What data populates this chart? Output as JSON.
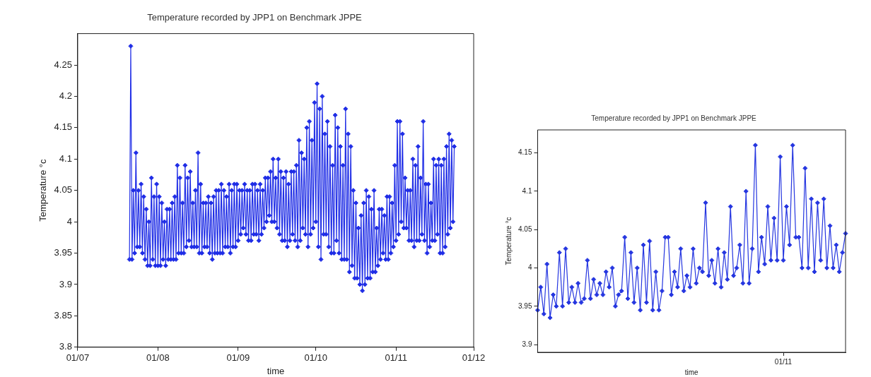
{
  "chart_data": [
    {
      "type": "line",
      "title": "Temperature recorded by JPP1 on Benchmark JPPE",
      "xlabel": "time",
      "ylabel": "Temperature °c",
      "marker": "diamond",
      "xlim": [
        "--07-01",
        "--12-01"
      ],
      "xticks": [
        {
          "value": "--07-01",
          "label": "01/07"
        },
        {
          "value": "--08-01",
          "label": "01/08"
        },
        {
          "value": "--09-01",
          "label": "01/09"
        },
        {
          "value": "--10-01",
          "label": "01/10"
        },
        {
          "value": "--11-01",
          "label": "01/11"
        },
        {
          "value": "--12-01",
          "label": "01/12"
        }
      ],
      "ylim": [
        3.8,
        4.3
      ],
      "yticks": [
        3.8,
        3.85,
        3.9,
        3.95,
        4,
        4.05,
        4.1,
        4.15,
        4.2,
        4.25
      ],
      "x": [
        "--07-21",
        "--07-21T12:00",
        "--07-22",
        "--07-22T12:00",
        "--07-23",
        "--07-23T12:00",
        "--07-24",
        "--07-24T12:00",
        "--07-25",
        "--07-25T12:00",
        "--07-26",
        "--07-26T12:00",
        "--07-27",
        "--07-27T12:00",
        "--07-28",
        "--07-28T12:00",
        "--07-29",
        "--07-29T12:00",
        "--07-30",
        "--07-30T12:00",
        "--07-31",
        "--07-31T12:00",
        "--08-01",
        "--08-01T12:00",
        "--08-02",
        "--08-02T12:00",
        "--08-03",
        "--08-03T12:00",
        "--08-04",
        "--08-04T12:00",
        "--08-05",
        "--08-05T12:00",
        "--08-06",
        "--08-06T12:00",
        "--08-07",
        "--08-07T12:00",
        "--08-08",
        "--08-08T12:00",
        "--08-09",
        "--08-09T12:00",
        "--08-10",
        "--08-10T12:00",
        "--08-11",
        "--08-11T12:00",
        "--08-12",
        "--08-12T12:00",
        "--08-13",
        "--08-13T12:00",
        "--08-14",
        "--08-14T12:00",
        "--08-15",
        "--08-15T12:00",
        "--08-16",
        "--08-16T12:00",
        "--08-17",
        "--08-17T12:00",
        "--08-18",
        "--08-18T12:00",
        "--08-19",
        "--08-19T12:00",
        "--08-20",
        "--08-20T12:00",
        "--08-21",
        "--08-21T12:00",
        "--08-22",
        "--08-22T12:00",
        "--08-23",
        "--08-23T12:00",
        "--08-24",
        "--08-24T12:00",
        "--08-25",
        "--08-25T12:00",
        "--08-26",
        "--08-26T12:00",
        "--08-27",
        "--08-27T12:00",
        "--08-28",
        "--08-28T12:00",
        "--08-29",
        "--08-29T12:00",
        "--08-30",
        "--08-30T12:00",
        "--08-31",
        "--08-31T12:00",
        "--09-01",
        "--09-01T12:00",
        "--09-02",
        "--09-02T12:00",
        "--09-03",
        "--09-03T12:00",
        "--09-04",
        "--09-04T12:00",
        "--09-05",
        "--09-05T12:00",
        "--09-06",
        "--09-06T12:00",
        "--09-07",
        "--09-07T12:00",
        "--09-08",
        "--09-08T12:00",
        "--09-09",
        "--09-09T12:00",
        "--09-10",
        "--09-10T12:00",
        "--09-11",
        "--09-11T12:00",
        "--09-12",
        "--09-12T12:00",
        "--09-13",
        "--09-13T12:00",
        "--09-14",
        "--09-14T12:00",
        "--09-15",
        "--09-15T12:00",
        "--09-16",
        "--09-16T12:00",
        "--09-17",
        "--09-17T12:00",
        "--09-18",
        "--09-18T12:00",
        "--09-19",
        "--09-19T12:00",
        "--09-20",
        "--09-20T12:00",
        "--09-21",
        "--09-21T12:00",
        "--09-22",
        "--09-22T12:00",
        "--09-23",
        "--09-23T12:00",
        "--09-24",
        "--09-24T12:00",
        "--09-25",
        "--09-25T12:00",
        "--09-26",
        "--09-26T12:00",
        "--09-27",
        "--09-27T12:00",
        "--09-28",
        "--09-28T12:00",
        "--09-29",
        "--09-29T12:00",
        "--09-30",
        "--09-30T12:00",
        "--10-01",
        "--10-01T12:00",
        "--10-02",
        "--10-02T12:00",
        "--10-03",
        "--10-03T12:00",
        "--10-04",
        "--10-04T12:00",
        "--10-05",
        "--10-05T12:00",
        "--10-06",
        "--10-06T12:00",
        "--10-07",
        "--10-07T12:00",
        "--10-08",
        "--10-08T12:00",
        "--10-09",
        "--10-09T12:00",
        "--10-10",
        "--10-10T12:00",
        "--10-11",
        "--10-11T12:00",
        "--10-12",
        "--10-12T12:00",
        "--10-13",
        "--10-13T12:00",
        "--10-14",
        "--10-14T12:00",
        "--10-15",
        "--10-15T12:00",
        "--10-16",
        "--10-16T12:00",
        "--10-17",
        "--10-17T12:00",
        "--10-18",
        "--10-18T12:00",
        "--10-19",
        "--10-19T12:00",
        "--10-20",
        "--10-20T12:00",
        "--10-21",
        "--10-21T12:00",
        "--10-22",
        "--10-22T12:00",
        "--10-23",
        "--10-23T12:00",
        "--10-24",
        "--10-24T12:00",
        "--10-25",
        "--10-25T12:00",
        "--10-26",
        "--10-26T12:00",
        "--10-27",
        "--10-27T12:00",
        "--10-28",
        "--10-28T12:00",
        "--10-29",
        "--10-29T12:00",
        "--10-30",
        "--10-30T12:00",
        "--10-31",
        "--10-31T12:00",
        "--11-01",
        "--11-01T12:00",
        "--11-02",
        "--11-02T12:00",
        "--11-03",
        "--11-03T12:00",
        "--11-04",
        "--11-04T12:00",
        "--11-05",
        "--11-05T12:00",
        "--11-06",
        "--11-06T12:00",
        "--11-07",
        "--11-07T12:00",
        "--11-08",
        "--11-08T12:00",
        "--11-09",
        "--11-09T12:00",
        "--11-10",
        "--11-10T12:00",
        "--11-11",
        "--11-11T12:00",
        "--11-12",
        "--11-12T12:00",
        "--11-13",
        "--11-13T12:00",
        "--11-14",
        "--11-14T12:00",
        "--11-15",
        "--11-15T12:00",
        "--11-16",
        "--11-16T12:00",
        "--11-17",
        "--11-17T12:00",
        "--11-18",
        "--11-18T12:00",
        "--11-19",
        "--11-19T12:00",
        "--11-20",
        "--11-20T12:00",
        "--11-21",
        "--11-21T12:00",
        "--11-22",
        "--11-22T12:00",
        "--11-23",
        "--11-23T12:00"
      ],
      "series": [
        {
          "color": "#1f2de6",
          "values": [
            3.94,
            4.28,
            3.94,
            4.05,
            3.95,
            4.11,
            3.96,
            4.05,
            3.96,
            4.06,
            3.95,
            4.04,
            3.94,
            4.02,
            3.93,
            4.0,
            3.93,
            4.07,
            3.94,
            4.04,
            3.93,
            4.06,
            3.93,
            4.04,
            3.93,
            4.03,
            3.94,
            4.0,
            3.93,
            4.02,
            3.94,
            4.02,
            3.94,
            4.03,
            3.94,
            4.04,
            3.94,
            4.09,
            3.95,
            4.07,
            3.95,
            4.03,
            3.95,
            4.09,
            3.96,
            4.07,
            3.97,
            4.08,
            3.96,
            4.03,
            3.96,
            4.05,
            3.96,
            4.11,
            3.95,
            4.06,
            3.95,
            4.03,
            3.96,
            4.03,
            3.96,
            4.04,
            3.95,
            4.03,
            3.94,
            4.04,
            3.95,
            4.05,
            3.95,
            4.05,
            3.95,
            4.06,
            3.95,
            4.05,
            3.96,
            4.04,
            3.96,
            4.06,
            3.95,
            4.05,
            3.96,
            4.06,
            3.96,
            4.06,
            3.97,
            4.05,
            3.98,
            4.05,
            3.99,
            4.06,
            3.98,
            4.05,
            3.97,
            4.05,
            3.97,
            4.06,
            3.98,
            4.06,
            3.98,
            4.05,
            3.97,
            4.06,
            3.98,
            4.05,
            3.99,
            4.07,
            4.0,
            4.07,
            4.01,
            4.08,
            4.0,
            4.1,
            4.0,
            4.07,
            3.99,
            4.1,
            3.98,
            4.08,
            3.97,
            4.07,
            3.97,
            4.08,
            3.96,
            4.06,
            3.97,
            4.08,
            3.98,
            4.08,
            3.97,
            4.09,
            3.96,
            4.13,
            3.97,
            4.11,
            3.99,
            4.1,
            3.98,
            4.15,
            3.96,
            4.16,
            3.98,
            4.13,
            3.99,
            4.19,
            4.0,
            4.22,
            3.96,
            4.18,
            3.94,
            4.2,
            3.98,
            4.14,
            3.98,
            4.16,
            3.96,
            4.12,
            3.95,
            4.09,
            3.95,
            4.17,
            3.97,
            4.15,
            3.95,
            4.12,
            3.94,
            4.09,
            3.94,
            4.18,
            3.94,
            4.14,
            3.92,
            4.12,
            3.93,
            4.05,
            3.91,
            4.03,
            3.91,
            3.99,
            3.9,
            4.01,
            3.89,
            4.03,
            3.9,
            4.05,
            3.91,
            4.04,
            3.91,
            4.02,
            3.92,
            4.05,
            3.92,
            3.99,
            3.93,
            4.02,
            3.94,
            4.02,
            3.95,
            4.01,
            3.94,
            4.04,
            3.94,
            4.04,
            3.95,
            4.03,
            3.96,
            4.09,
            3.97,
            4.16,
            3.98,
            4.16,
            4.0,
            4.14,
            3.99,
            4.07,
            3.99,
            4.05,
            3.97,
            4.05,
            3.97,
            4.1,
            3.96,
            4.09,
            3.97,
            4.12,
            3.97,
            4.07,
            3.98,
            4.16,
            3.97,
            4.06,
            3.95,
            4.06,
            3.96,
            4.03,
            3.97,
            4.1,
            3.97,
            4.09,
            3.98,
            4.1,
            3.95,
            4.09,
            3.95,
            4.1,
            3.96,
            4.12,
            3.98,
            4.14,
            3.99,
            4.13,
            4.0,
            4.12
          ]
        }
      ]
    },
    {
      "type": "line",
      "title": "Temperature recorded by JPP1 on Benchmark JPPE",
      "xlabel": "time",
      "ylabel": "Temperature °c",
      "marker": "diamond",
      "ylim": [
        3.89,
        4.18
      ],
      "yticks": [
        3.9,
        3.95,
        4,
        4.05,
        4.1,
        4.15
      ],
      "categories": [
        null,
        null,
        null,
        null,
        null,
        null,
        null,
        null,
        null,
        null,
        null,
        null,
        null,
        null,
        null,
        null,
        null,
        null,
        null,
        null,
        null,
        null,
        null,
        null,
        null,
        null,
        null,
        null,
        null,
        null,
        null,
        null,
        null,
        null,
        null,
        null,
        null,
        null,
        null,
        null,
        null,
        null,
        null,
        null,
        null,
        null,
        null,
        null,
        null,
        null,
        null,
        null,
        null,
        null,
        null,
        null,
        null,
        null,
        null,
        null,
        null,
        null,
        null,
        null,
        null,
        null,
        null,
        null,
        null,
        null,
        null,
        null,
        null,
        null,
        null,
        null,
        null,
        null,
        null,
        "01/11",
        null,
        null,
        null,
        null,
        null,
        null,
        null,
        null,
        null,
        null,
        null,
        null,
        null,
        null,
        null,
        null,
        null,
        null,
        null,
        null
      ],
      "series": [
        {
          "color": "#2536e0",
          "values": [
            3.945,
            3.975,
            3.94,
            4.005,
            3.935,
            3.965,
            3.95,
            4.02,
            3.95,
            4.025,
            3.955,
            3.975,
            3.955,
            3.98,
            3.955,
            3.96,
            4.01,
            3.96,
            3.985,
            3.965,
            3.98,
            3.965,
            3.995,
            3.975,
            4.0,
            3.95,
            3.965,
            3.97,
            4.04,
            3.96,
            4.02,
            3.955,
            4.0,
            3.945,
            4.03,
            3.955,
            4.035,
            3.945,
            3.995,
            3.945,
            3.97,
            4.04,
            4.04,
            3.965,
            3.995,
            3.975,
            4.025,
            3.97,
            3.99,
            3.975,
            4.025,
            3.98,
            4.0,
            3.995,
            4.085,
            3.99,
            4.01,
            3.98,
            4.025,
            3.975,
            4.02,
            3.985,
            4.08,
            3.99,
            4.0,
            4.03,
            3.98,
            4.1,
            3.98,
            4.025,
            4.16,
            3.995,
            4.04,
            4.005,
            4.08,
            4.01,
            4.065,
            4.01,
            4.145,
            4.01,
            4.08,
            4.03,
            4.16,
            4.04,
            4.04,
            4.0,
            4.13,
            4.0,
            4.09,
            3.995,
            4.085,
            4.01,
            4.09,
            4.0,
            4.055,
            4.0,
            4.03,
            3.995,
            4.02,
            4.045
          ]
        }
      ]
    }
  ]
}
